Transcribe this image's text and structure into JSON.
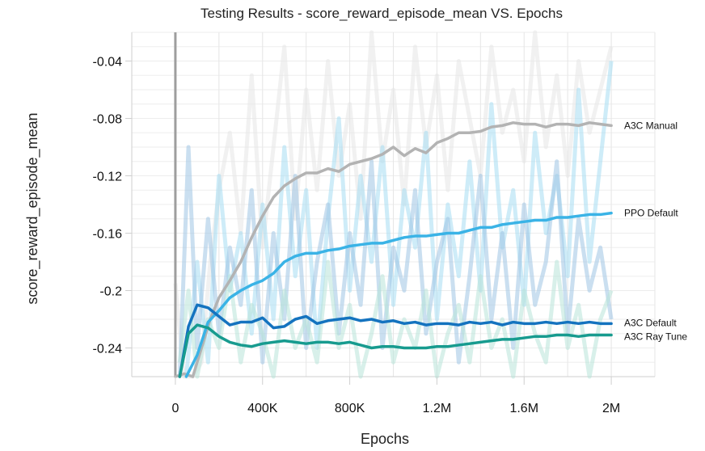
{
  "chart_data": {
    "type": "line",
    "title": "Testing Results - score_reward_episode_mean VS. Epochs",
    "xlabel": "Epochs",
    "ylabel": "score_reward_episode_mean",
    "xlim": [
      -200000,
      2200000
    ],
    "ylim": [
      -0.26,
      -0.02
    ],
    "x_ticks": [
      0,
      400000,
      800000,
      1200000,
      1600000,
      2000000
    ],
    "x_tick_labels": [
      "0",
      "400K",
      "800K",
      "1.2M",
      "1.6M",
      "2M"
    ],
    "y_ticks": [
      -0.24,
      -0.2,
      -0.16,
      -0.12,
      -0.08,
      -0.04
    ],
    "y_tick_labels": [
      "-0.24",
      "-0.2",
      "-0.16",
      "-0.12",
      "-0.08",
      "-0.04"
    ],
    "grid": true,
    "legend": "labels at line ends",
    "series": [
      {
        "name": "A3C Manual",
        "color": "#b3b3b3",
        "raw_color": "#e6e6e6",
        "x": [
          0,
          40000,
          80000,
          120000,
          160000,
          200000,
          250000,
          300000,
          350000,
          400000,
          450000,
          500000,
          550000,
          600000,
          650000,
          700000,
          750000,
          800000,
          850000,
          900000,
          950000,
          1000000,
          1050000,
          1100000,
          1150000,
          1200000,
          1250000,
          1300000,
          1350000,
          1400000,
          1450000,
          1500000,
          1550000,
          1600000,
          1650000,
          1700000,
          1750000,
          1800000,
          1850000,
          1900000,
          1950000,
          2000000
        ],
        "y": [
          -0.27,
          -0.258,
          -0.262,
          -0.24,
          -0.22,
          -0.205,
          -0.193,
          -0.18,
          -0.163,
          -0.148,
          -0.135,
          -0.127,
          -0.122,
          -0.118,
          -0.118,
          -0.115,
          -0.117,
          -0.112,
          -0.11,
          -0.108,
          -0.105,
          -0.1,
          -0.106,
          -0.101,
          -0.104,
          -0.097,
          -0.094,
          -0.09,
          -0.09,
          -0.089,
          -0.086,
          -0.085,
          -0.083,
          -0.084,
          -0.084,
          -0.086,
          -0.084,
          -0.084,
          -0.085,
          -0.083,
          -0.084,
          -0.085
        ],
        "raw_y": [
          -0.195,
          -0.26,
          -0.27,
          -0.25,
          -0.18,
          -0.13,
          -0.09,
          -0.16,
          -0.05,
          -0.17,
          -0.1,
          -0.03,
          -0.15,
          -0.06,
          -0.13,
          -0.04,
          -0.12,
          -0.07,
          -0.15,
          -0.02,
          -0.11,
          -0.06,
          -0.14,
          -0.03,
          -0.1,
          -0.05,
          -0.13,
          -0.04,
          -0.08,
          -0.12,
          -0.03,
          -0.09,
          -0.06,
          -0.11,
          -0.02,
          -0.1,
          -0.05,
          -0.12,
          -0.04,
          -0.09,
          -0.06,
          -0.03
        ]
      },
      {
        "name": "PPO Default",
        "color": "#3ab3e6",
        "raw_color": "#a6dcf2",
        "x": [
          50000,
          100000,
          150000,
          200000,
          250000,
          300000,
          350000,
          400000,
          450000,
          500000,
          550000,
          600000,
          650000,
          700000,
          750000,
          800000,
          850000,
          900000,
          950000,
          1000000,
          1050000,
          1100000,
          1150000,
          1200000,
          1250000,
          1300000,
          1350000,
          1400000,
          1450000,
          1500000,
          1550000,
          1600000,
          1650000,
          1700000,
          1750000,
          1800000,
          1850000,
          1900000,
          1950000,
          2000000
        ],
        "y": [
          -0.268,
          -0.245,
          -0.222,
          -0.214,
          -0.205,
          -0.2,
          -0.196,
          -0.193,
          -0.188,
          -0.18,
          -0.176,
          -0.174,
          -0.174,
          -0.172,
          -0.171,
          -0.169,
          -0.168,
          -0.167,
          -0.167,
          -0.165,
          -0.163,
          -0.162,
          -0.162,
          -0.161,
          -0.16,
          -0.16,
          -0.158,
          -0.156,
          -0.156,
          -0.154,
          -0.153,
          -0.152,
          -0.151,
          -0.151,
          -0.149,
          -0.149,
          -0.148,
          -0.147,
          -0.147,
          -0.146
        ],
        "raw_y": [
          -0.26,
          -0.18,
          -0.25,
          -0.12,
          -0.2,
          -0.16,
          -0.23,
          -0.14,
          -0.22,
          -0.1,
          -0.19,
          -0.13,
          -0.24,
          -0.15,
          -0.08,
          -0.2,
          -0.12,
          -0.18,
          -0.1,
          -0.21,
          -0.13,
          -0.17,
          -0.09,
          -0.22,
          -0.14,
          -0.19,
          -0.11,
          -0.2,
          -0.07,
          -0.17,
          -0.13,
          -0.21,
          -0.09,
          -0.16,
          -0.12,
          -0.19,
          -0.06,
          -0.18,
          -0.11,
          -0.04
        ]
      },
      {
        "name": "A3C Default",
        "color": "#1473bf",
        "raw_color": "#9fc4e4",
        "x": [
          20000,
          60000,
          100000,
          150000,
          200000,
          250000,
          300000,
          350000,
          400000,
          450000,
          500000,
          550000,
          600000,
          650000,
          700000,
          750000,
          800000,
          850000,
          900000,
          950000,
          1000000,
          1050000,
          1100000,
          1150000,
          1200000,
          1250000,
          1300000,
          1350000,
          1400000,
          1450000,
          1500000,
          1550000,
          1600000,
          1650000,
          1700000,
          1750000,
          1800000,
          1850000,
          1900000,
          1950000,
          2000000
        ],
        "y": [
          -0.27,
          -0.225,
          -0.21,
          -0.212,
          -0.218,
          -0.224,
          -0.222,
          -0.222,
          -0.219,
          -0.226,
          -0.225,
          -0.22,
          -0.218,
          -0.223,
          -0.221,
          -0.22,
          -0.219,
          -0.221,
          -0.22,
          -0.222,
          -0.221,
          -0.223,
          -0.222,
          -0.224,
          -0.223,
          -0.223,
          -0.224,
          -0.222,
          -0.223,
          -0.222,
          -0.224,
          -0.222,
          -0.223,
          -0.223,
          -0.222,
          -0.223,
          -0.222,
          -0.223,
          -0.222,
          -0.223,
          -0.223
        ],
        "raw_y": [
          -0.26,
          -0.1,
          -0.24,
          -0.15,
          -0.23,
          -0.17,
          -0.21,
          -0.13,
          -0.25,
          -0.16,
          -0.22,
          -0.12,
          -0.24,
          -0.18,
          -0.14,
          -0.23,
          -0.16,
          -0.21,
          -0.11,
          -0.24,
          -0.17,
          -0.2,
          -0.13,
          -0.23,
          -0.18,
          -0.15,
          -0.25,
          -0.19,
          -0.12,
          -0.22,
          -0.16,
          -0.24,
          -0.14,
          -0.21,
          -0.18,
          -0.11,
          -0.23,
          -0.15,
          -0.2,
          -0.17,
          -0.22
        ]
      },
      {
        "name": "A3C Ray Tune",
        "color": "#179b8f",
        "raw_color": "#b8e3d9",
        "x": [
          20000,
          60000,
          100000,
          150000,
          200000,
          250000,
          300000,
          350000,
          400000,
          450000,
          500000,
          550000,
          600000,
          650000,
          700000,
          750000,
          800000,
          850000,
          900000,
          950000,
          1000000,
          1050000,
          1100000,
          1150000,
          1200000,
          1250000,
          1300000,
          1350000,
          1400000,
          1450000,
          1500000,
          1550000,
          1600000,
          1650000,
          1700000,
          1750000,
          1800000,
          1850000,
          1900000,
          1950000,
          2000000
        ],
        "y": [
          -0.27,
          -0.23,
          -0.224,
          -0.226,
          -0.232,
          -0.236,
          -0.238,
          -0.239,
          -0.237,
          -0.236,
          -0.235,
          -0.236,
          -0.237,
          -0.236,
          -0.236,
          -0.237,
          -0.236,
          -0.238,
          -0.24,
          -0.239,
          -0.239,
          -0.24,
          -0.24,
          -0.24,
          -0.239,
          -0.239,
          -0.238,
          -0.237,
          -0.236,
          -0.235,
          -0.234,
          -0.234,
          -0.233,
          -0.232,
          -0.232,
          -0.231,
          -0.231,
          -0.232,
          -0.231,
          -0.231,
          -0.231
        ],
        "raw_y": [
          -0.25,
          -0.2,
          -0.26,
          -0.22,
          -0.24,
          -0.19,
          -0.25,
          -0.21,
          -0.23,
          -0.26,
          -0.2,
          -0.24,
          -0.22,
          -0.25,
          -0.18,
          -0.24,
          -0.21,
          -0.26,
          -0.23,
          -0.19,
          -0.25,
          -0.22,
          -0.24,
          -0.2,
          -0.26,
          -0.23,
          -0.21,
          -0.25,
          -0.19,
          -0.24,
          -0.22,
          -0.26,
          -0.2,
          -0.23,
          -0.25,
          -0.18,
          -0.24,
          -0.21,
          -0.26,
          -0.22,
          -0.2
        ]
      }
    ]
  }
}
